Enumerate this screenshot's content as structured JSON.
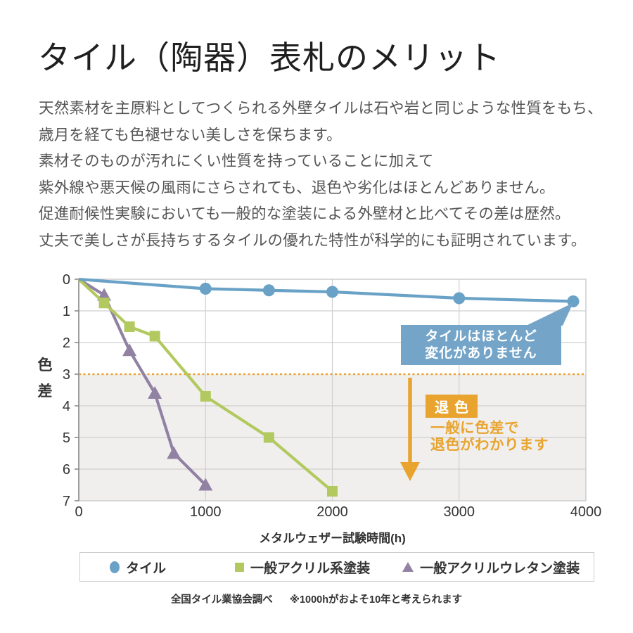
{
  "title": "タイル（陶器）表札のメリット",
  "intro": "天然素材を主原料としてつくられる外壁タイルは石や岩と同じような性質をもち、\n歳月を経ても色褪せない美しさを保ちます。\n素材そのものが汚れにくい性質を持っていることに加えて\n紫外線や悪天候の風雨にさらされても、退色や劣化はほとんどありません。\n促進耐候性実験においても一般的な塗装による外壁材と比べてその差は歴然。\n丈夫で美しさが長持ちするタイルの優れた特性が科学的にも証明されています。",
  "colors": {
    "tile_blue": "#69a2c6",
    "acrylic_green": "#b2c95f",
    "urethane_purple": "#9181a3",
    "accent_orange": "#e8a42f",
    "callout_blue": "#74a5c8",
    "shade_gray": "#f0efee",
    "grid_gray": "#cfcfcf",
    "body_text": "#555555"
  },
  "chart_data": {
    "type": "line",
    "title": "",
    "xlabel": "メタルウェザー試験時間(h)",
    "ylabel": "色差",
    "xlim": [
      0,
      4000
    ],
    "ylim": [
      0,
      7
    ],
    "y_axis_inverted": true,
    "grid": true,
    "x_ticks": [
      0,
      1000,
      2000,
      3000,
      4000
    ],
    "y_ticks": [
      0,
      1,
      2,
      3,
      4,
      5,
      6,
      7
    ],
    "threshold": {
      "value": 3,
      "color": "#e8a42f",
      "style": "dotted",
      "shade_below": true
    },
    "series": [
      {
        "id": "acrylic-urethane",
        "name": "一般アクリルウレタン塗装",
        "marker": "triangle",
        "color": "#9181a3",
        "points": [
          [
            0,
            0
          ],
          [
            200,
            0.5
          ],
          [
            400,
            2.25
          ],
          [
            600,
            3.6
          ],
          [
            750,
            5.5
          ],
          [
            1000,
            6.5
          ]
        ]
      },
      {
        "id": "acrylic",
        "name": "一般アクリル系塗装",
        "marker": "square",
        "color": "#b2c95f",
        "points": [
          [
            0,
            0
          ],
          [
            200,
            0.75
          ],
          [
            400,
            1.5
          ],
          [
            600,
            1.8
          ],
          [
            1000,
            3.7
          ],
          [
            1500,
            5.0
          ],
          [
            2000,
            6.7
          ]
        ]
      },
      {
        "id": "tile",
        "name": "タイル",
        "marker": "circle",
        "color": "#69a2c6",
        "points": [
          [
            0,
            0
          ],
          [
            1000,
            0.3
          ],
          [
            1500,
            0.35
          ],
          [
            2000,
            0.4
          ],
          [
            3000,
            0.6
          ],
          [
            3900,
            0.7
          ]
        ]
      }
    ],
    "annotations": {
      "callout": {
        "text": "タイルはほとんど\n変化がありません",
        "bg": "#74a5c8",
        "color": "#ffffff"
      },
      "fade_badge": {
        "text": "退色",
        "bg": "#e8a42f",
        "color": "#ffffff"
      },
      "fade_note": {
        "text": "一般に色差で\n退色がわかります",
        "color": "#e8a42f"
      }
    },
    "legend_position": "bottom"
  },
  "legend": {
    "items": [
      {
        "label": "タイル",
        "marker": "circle"
      },
      {
        "label": "一般アクリル系塗装",
        "marker": "square"
      },
      {
        "label": "一般アクリルウレタン塗装",
        "marker": "triangle"
      }
    ]
  },
  "footer": {
    "source": "全国タイル業協会調べ",
    "note": "※1000hがおよそ10年と考えられます"
  }
}
